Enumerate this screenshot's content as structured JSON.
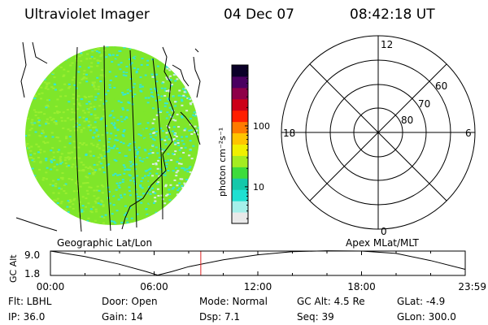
{
  "header": {
    "instrument": "Ultraviolet Imager",
    "date": "04 Dec 07",
    "time": "08:42:18 UT"
  },
  "image_panel": {
    "caption": "Geographic Lat/Lon",
    "colors": {
      "green": "#7fe62a",
      "cyan": "#33e6d6",
      "pale": "#d8ece8"
    }
  },
  "colorbar": {
    "label": "photon cm⁻²s⁻¹",
    "ticks": [
      {
        "value": 10,
        "label": "10"
      },
      {
        "value": 100,
        "label": "100"
      }
    ],
    "range": [
      2.5,
      1000
    ],
    "scale": "log",
    "colors": [
      "#e9e9e9",
      "#a5f0ea",
      "#1ee0d2",
      "#14c8aa",
      "#3ddc3c",
      "#a4ec20",
      "#f0f000",
      "#ffc400",
      "#ff7a00",
      "#ff1e00",
      "#cc0018",
      "#8e0048",
      "#4a0060",
      "#0a0028"
    ]
  },
  "polar_panel": {
    "caption": "Apex  MLat/MLT",
    "mlt_labels": {
      "top": "12",
      "left": "18",
      "right": "6",
      "bottom": "0"
    },
    "lat_labels": [
      "60",
      "70",
      "80"
    ]
  },
  "chart_data": {
    "type": "line",
    "title": "",
    "ylabel": "GC Alt",
    "ytick_labels": [
      "9.0",
      "1.8"
    ],
    "ylim": [
      1.8,
      9.0
    ],
    "xtick_labels": [
      "00:00",
      "06:00",
      "12:00",
      "18:00",
      "23:59"
    ],
    "xlim_hours": [
      0,
      24
    ],
    "x": [
      0,
      2,
      4,
      5.5,
      6.2,
      7,
      8,
      10,
      12,
      14,
      16,
      18,
      20,
      22,
      24
    ],
    "values": [
      9.0,
      7.4,
      5.1,
      3.0,
      1.9,
      2.9,
      4.4,
      6.4,
      7.9,
      8.8,
      9.1,
      9.0,
      8.3,
      6.2,
      3.6
    ],
    "current_time_hours": 8.7,
    "marker_color": "#e02020"
  },
  "info": {
    "filter": "Flt: LBHL",
    "ip": "IP: 36.0",
    "door": "Door: Open",
    "gain": "Gain: 14",
    "mode": "Mode: Normal",
    "dsp": "Dsp:    7.1",
    "gc_alt": "GC Alt: 4.5 Re",
    "seq": "Seq: 39",
    "glat": "GLat:  -4.9",
    "glon": "GLon: 300.0"
  }
}
